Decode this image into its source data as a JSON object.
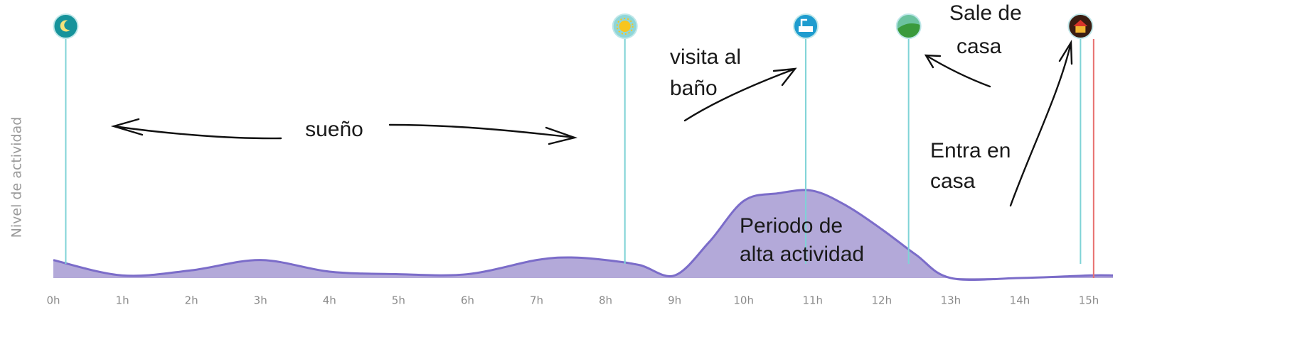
{
  "chart_data": {
    "type": "area",
    "y_label": "Nivel de actividad",
    "x": [
      0,
      1,
      2,
      3,
      4,
      5,
      6,
      7,
      7.5,
      8,
      8.5,
      9,
      9.5,
      10,
      10.5,
      11,
      11.5,
      12,
      12.5,
      13,
      14,
      15,
      15.35
    ],
    "values": [
      7,
      1,
      3,
      7,
      2.5,
      1.5,
      1.5,
      7,
      8,
      7,
      5,
      1,
      14,
      30,
      33,
      34,
      28,
      19,
      9,
      0,
      0,
      1,
      1
    ],
    "color": "#b3a9d9",
    "line_color": "#7b6cc9",
    "xlim": [
      0,
      15.35
    ],
    "ylim": [
      0,
      100
    ],
    "xticks": [
      {
        "value": 0,
        "label": "0h"
      },
      {
        "value": 1,
        "label": "1h"
      },
      {
        "value": 2,
        "label": "2h"
      },
      {
        "value": 3,
        "label": "3h"
      },
      {
        "value": 4,
        "label": "4h"
      },
      {
        "value": 5,
        "label": "5h"
      },
      {
        "value": 6,
        "label": "6h"
      },
      {
        "value": 7,
        "label": "7h"
      },
      {
        "value": 8,
        "label": "8h"
      },
      {
        "value": 9,
        "label": "9h"
      },
      {
        "value": 10,
        "label": "10h"
      },
      {
        "value": 11,
        "label": "11h"
      },
      {
        "value": 12,
        "label": "12h"
      },
      {
        "value": 13,
        "label": "13h"
      },
      {
        "value": 14,
        "label": "14h"
      },
      {
        "value": 15,
        "label": "15h"
      }
    ],
    "events": [
      {
        "x": 0.18,
        "color": "#16939b"
      },
      {
        "x": 8.28,
        "color": "#8fd6d8"
      },
      {
        "x": 10.9,
        "color": "#1e9ccf"
      },
      {
        "x": 12.39,
        "color": "#6cc3a0"
      },
      {
        "x": 14.88,
        "color": "#3a1d12"
      }
    ],
    "event_line_color": "#7fd3d6",
    "marker_x": 15.07,
    "marker_color": "#e8706f",
    "annotations": [
      [
        "sueño"
      ],
      [
        "visita al",
        "baño"
      ],
      [
        "Sale de",
        "casa"
      ],
      [
        "Entra en",
        "casa"
      ],
      [
        "Periodo de",
        "alta actividad"
      ]
    ]
  }
}
